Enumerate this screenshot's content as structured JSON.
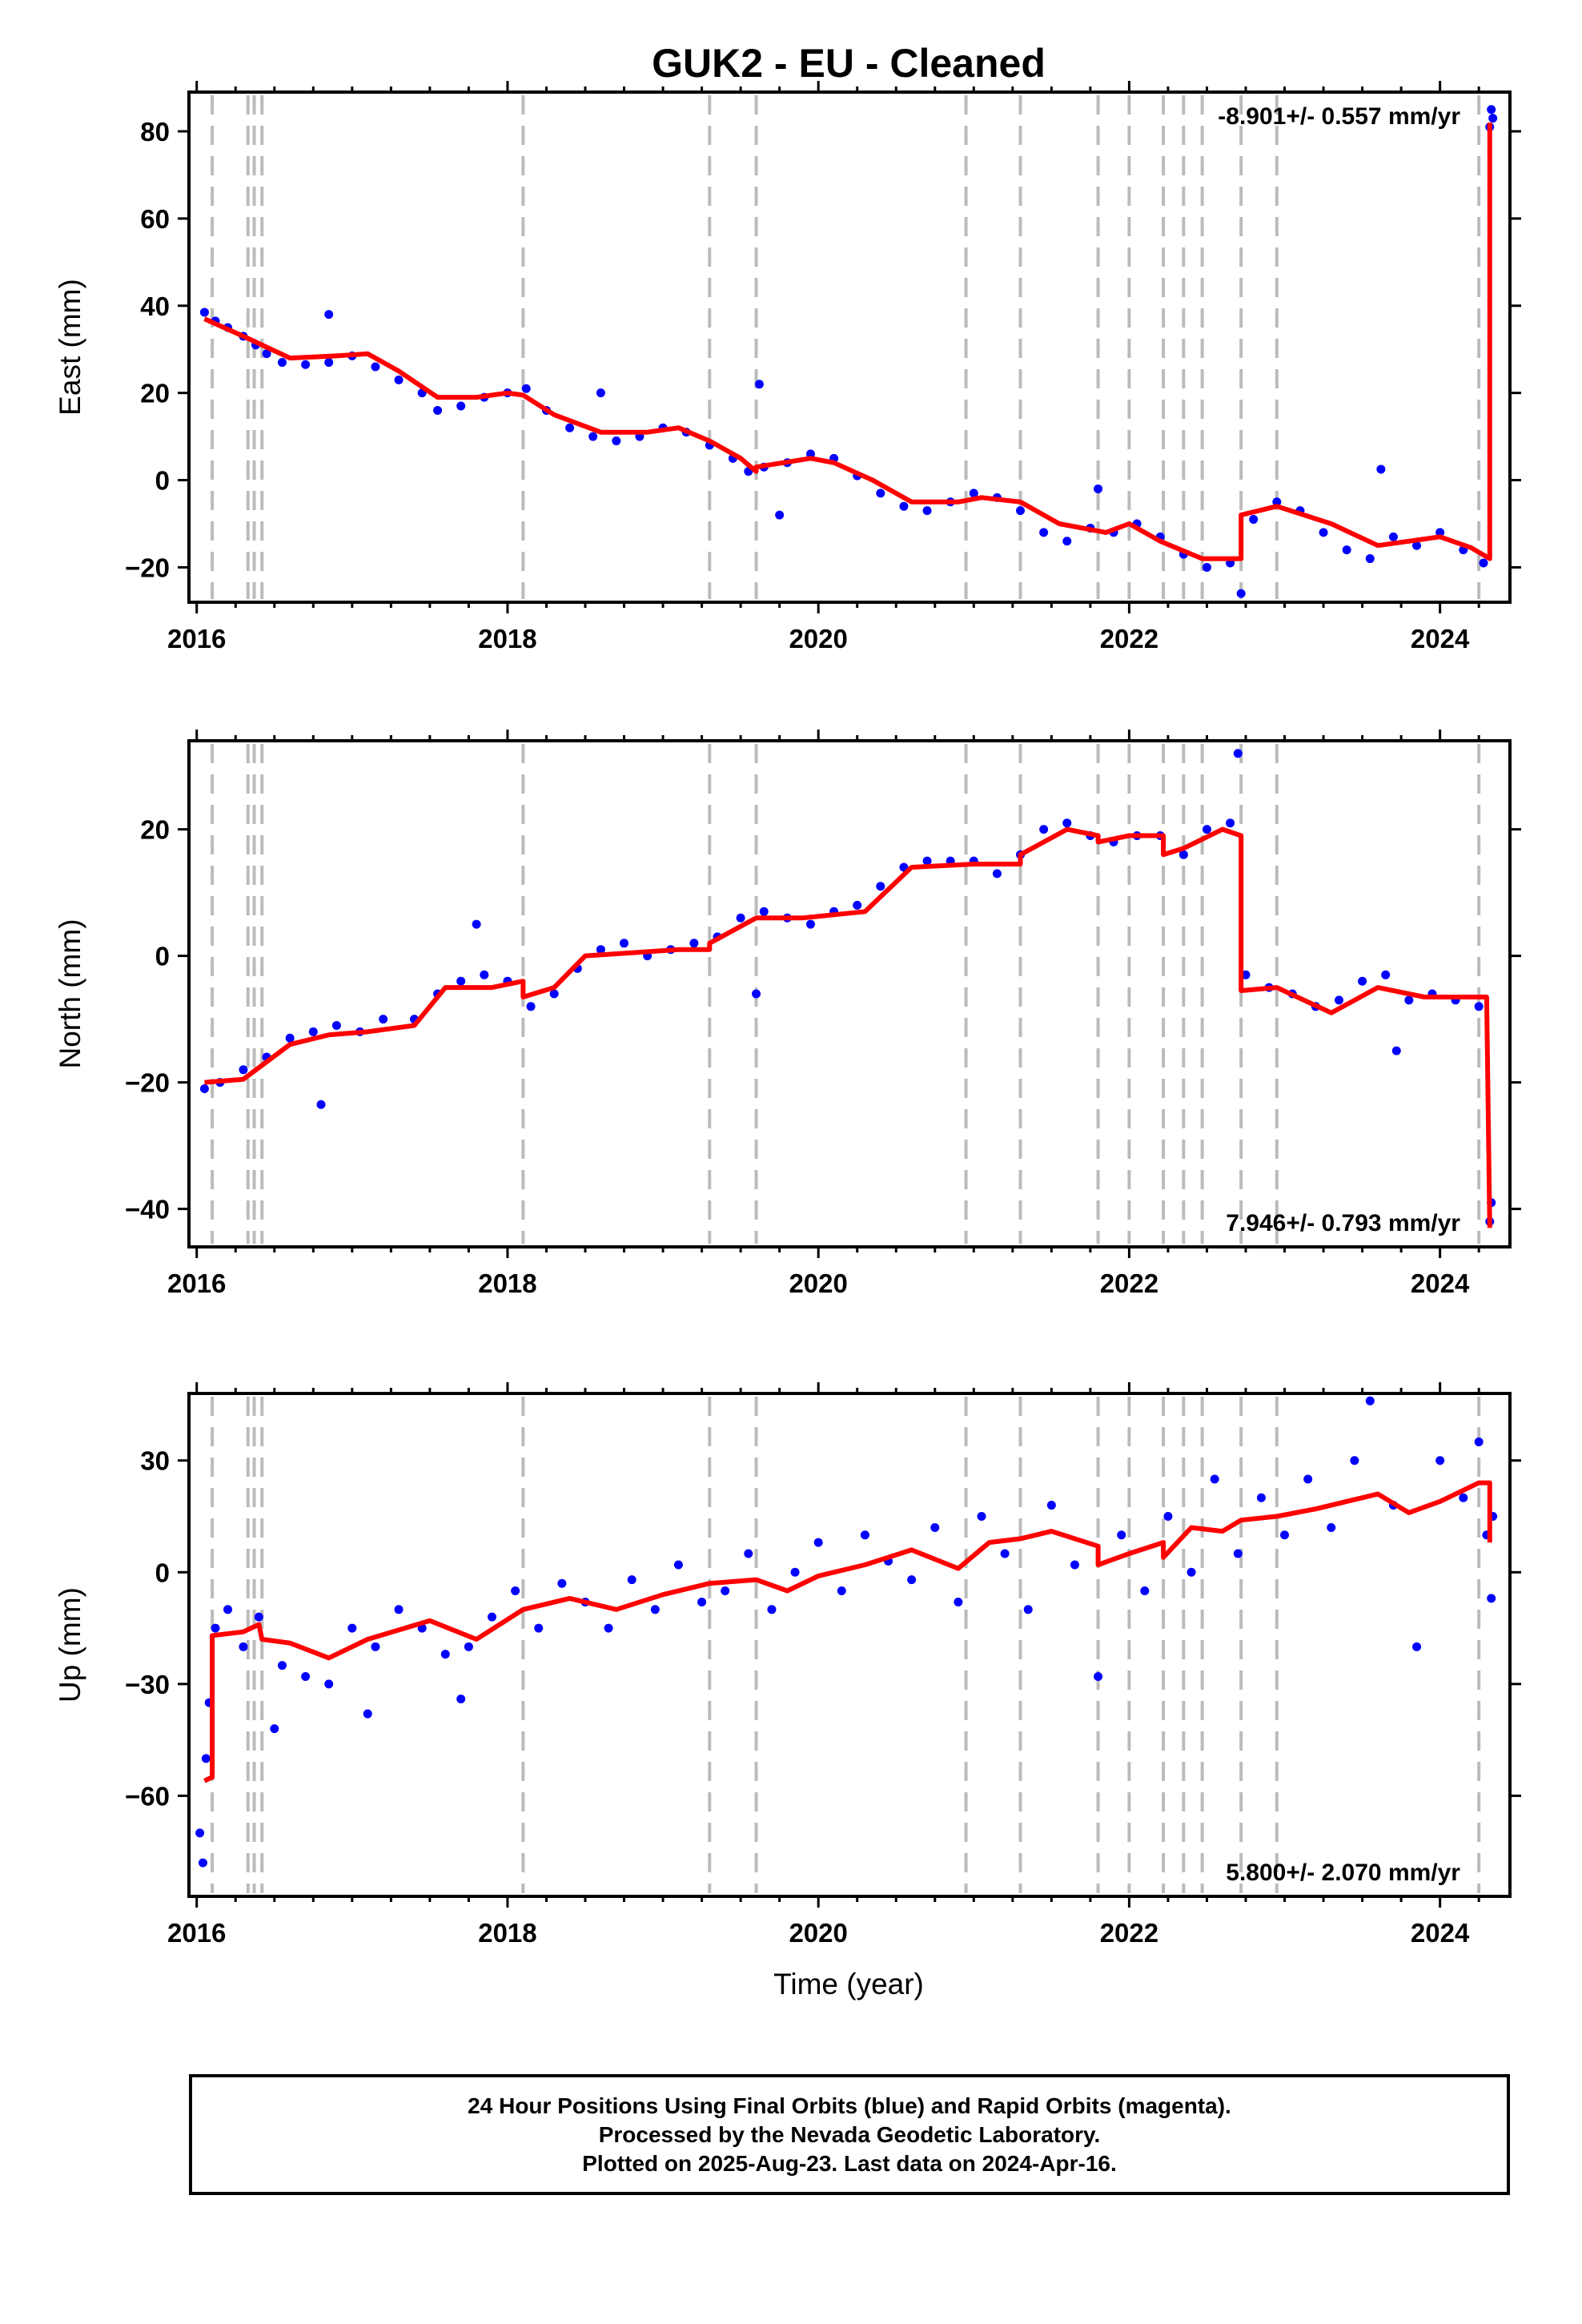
{
  "title": "GUK2  - EU - Cleaned",
  "footer": {
    "line1": "24 Hour Positions Using Final Orbits (blue) and Rapid Orbits (magenta).",
    "line2": "Processed by the Nevada Geodetic Laboratory.",
    "line3": "Plotted on 2025-Aug-23. Last data on 2024-Apr-16."
  },
  "colors": {
    "points": "#0000ff",
    "model": "#ff0000",
    "steps": "#bbbbbb"
  },
  "chart_data": [
    {
      "type": "scatter",
      "ylabel": "East (mm)",
      "xlabel": "",
      "rate_label": "-8.901+/- 0.557 mm/yr",
      "rate_position": "top-right",
      "xlim": [
        2015.95,
        2024.45
      ],
      "ylim": [
        -28,
        89
      ],
      "x_ticks": [
        2016,
        2018,
        2020,
        2022,
        2024
      ],
      "y_ticks": [
        -20,
        0,
        20,
        40,
        60,
        80
      ],
      "grid": false,
      "step_epochs": [
        2016.1,
        2016.33,
        2016.37,
        2016.42,
        2018.1,
        2019.3,
        2019.6,
        2020.95,
        2021.3,
        2021.8,
        2022.0,
        2022.22,
        2022.35,
        2022.47,
        2022.72,
        2022.95,
        2024.25
      ],
      "model": [
        [
          2016.05,
          37
        ],
        [
          2016.3,
          33
        ],
        [
          2016.6,
          28
        ],
        [
          2016.9,
          28.5
        ],
        [
          2017.1,
          29
        ],
        [
          2017.3,
          25
        ],
        [
          2017.55,
          19
        ],
        [
          2017.8,
          19
        ],
        [
          2018.0,
          20
        ],
        [
          2018.1,
          19.5
        ],
        [
          2018.3,
          15
        ],
        [
          2018.6,
          11
        ],
        [
          2018.9,
          11
        ],
        [
          2019.1,
          12
        ],
        [
          2019.3,
          9
        ],
        [
          2019.5,
          5
        ],
        [
          2019.6,
          2
        ],
        [
          2019.6,
          3
        ],
        [
          2019.95,
          5
        ],
        [
          2020.1,
          4
        ],
        [
          2020.35,
          0
        ],
        [
          2020.6,
          -5
        ],
        [
          2020.9,
          -5
        ],
        [
          2021.05,
          -4
        ],
        [
          2021.3,
          -5
        ],
        [
          2021.55,
          -10
        ],
        [
          2021.85,
          -12
        ],
        [
          2022.0,
          -10
        ],
        [
          2022.2,
          -14
        ],
        [
          2022.47,
          -18
        ],
        [
          2022.72,
          -18
        ],
        [
          2022.72,
          -8
        ],
        [
          2022.95,
          -6
        ],
        [
          2023.3,
          -10
        ],
        [
          2023.6,
          -15
        ],
        [
          2023.8,
          -14
        ],
        [
          2024.0,
          -13
        ],
        [
          2024.2,
          -15.5
        ],
        [
          2024.32,
          -18
        ],
        [
          2024.32,
          82
        ]
      ],
      "points": [
        [
          2016.05,
          38.5
        ],
        [
          2016.12,
          36.5
        ],
        [
          2016.2,
          35
        ],
        [
          2016.3,
          33
        ],
        [
          2016.38,
          31
        ],
        [
          2016.45,
          29
        ],
        [
          2016.55,
          27
        ],
        [
          2016.7,
          26.5
        ],
        [
          2016.85,
          27
        ],
        [
          2017.0,
          28.5
        ],
        [
          2017.15,
          26
        ],
        [
          2017.3,
          23
        ],
        [
          2017.45,
          20
        ],
        [
          2017.55,
          16
        ],
        [
          2017.7,
          17
        ],
        [
          2017.85,
          19
        ],
        [
          2018.0,
          20
        ],
        [
          2018.12,
          21
        ],
        [
          2018.25,
          16
        ],
        [
          2018.4,
          12
        ],
        [
          2018.55,
          10
        ],
        [
          2018.7,
          9
        ],
        [
          2018.85,
          10
        ],
        [
          2019.0,
          12
        ],
        [
          2019.15,
          11
        ],
        [
          2019.3,
          8
        ],
        [
          2019.45,
          5
        ],
        [
          2019.55,
          2
        ],
        [
          2019.65,
          3
        ],
        [
          2019.8,
          4
        ],
        [
          2019.95,
          6
        ],
        [
          2020.1,
          5
        ],
        [
          2020.25,
          1
        ],
        [
          2020.4,
          -3
        ],
        [
          2020.55,
          -6
        ],
        [
          2020.7,
          -7
        ],
        [
          2020.85,
          -5
        ],
        [
          2021.0,
          -3
        ],
        [
          2021.15,
          -4
        ],
        [
          2021.3,
          -7
        ],
        [
          2021.45,
          -12
        ],
        [
          2021.6,
          -14
        ],
        [
          2021.75,
          -11
        ],
        [
          2021.9,
          -12
        ],
        [
          2022.05,
          -10
        ],
        [
          2022.2,
          -13
        ],
        [
          2022.35,
          -17
        ],
        [
          2022.5,
          -20
        ],
        [
          2022.65,
          -19
        ],
        [
          2022.72,
          -26
        ],
        [
          2022.8,
          -9
        ],
        [
          2022.95,
          -5
        ],
        [
          2023.1,
          -7
        ],
        [
          2023.25,
          -12
        ],
        [
          2023.4,
          -16
        ],
        [
          2023.55,
          -18
        ],
        [
          2023.7,
          -13
        ],
        [
          2023.85,
          -15
        ],
        [
          2024.0,
          -12
        ],
        [
          2024.15,
          -16
        ],
        [
          2024.28,
          -19
        ],
        [
          2024.32,
          81
        ],
        [
          2024.33,
          85
        ],
        [
          2024.34,
          83
        ],
        [
          2018.6,
          20
        ],
        [
          2019.62,
          22
        ],
        [
          2019.75,
          -8
        ],
        [
          2021.8,
          -2
        ],
        [
          2023.62,
          2.5
        ],
        [
          2016.85,
          38
        ]
      ]
    },
    {
      "type": "scatter",
      "ylabel": "North (mm)",
      "xlabel": "",
      "rate_label": "7.946+/- 0.793 mm/yr",
      "rate_position": "bottom-right",
      "xlim": [
        2015.95,
        2024.45
      ],
      "ylim": [
        -46,
        34
      ],
      "x_ticks": [
        2016,
        2018,
        2020,
        2022,
        2024
      ],
      "y_ticks": [
        -40,
        -20,
        0,
        20
      ],
      "grid": false,
      "step_epochs": [
        2016.1,
        2016.33,
        2016.37,
        2016.42,
        2018.1,
        2019.3,
        2019.6,
        2020.95,
        2021.3,
        2021.8,
        2022.0,
        2022.22,
        2022.35,
        2022.47,
        2022.72,
        2022.95,
        2024.25
      ],
      "model": [
        [
          2016.05,
          -20
        ],
        [
          2016.3,
          -19.5
        ],
        [
          2016.6,
          -14
        ],
        [
          2016.85,
          -12.5
        ],
        [
          2017.1,
          -12
        ],
        [
          2017.4,
          -11
        ],
        [
          2017.6,
          -5
        ],
        [
          2017.9,
          -5
        ],
        [
          2018.1,
          -4
        ],
        [
          2018.1,
          -6.5
        ],
        [
          2018.3,
          -5
        ],
        [
          2018.5,
          0
        ],
        [
          2018.8,
          0.5
        ],
        [
          2019.1,
          1
        ],
        [
          2019.3,
          1
        ],
        [
          2019.3,
          2
        ],
        [
          2019.6,
          6
        ],
        [
          2019.9,
          6
        ],
        [
          2020.3,
          7
        ],
        [
          2020.6,
          14
        ],
        [
          2021.0,
          14.5
        ],
        [
          2021.3,
          14.5
        ],
        [
          2021.3,
          16
        ],
        [
          2021.6,
          20
        ],
        [
          2021.8,
          19
        ],
        [
          2021.8,
          18
        ],
        [
          2022.0,
          19
        ],
        [
          2022.22,
          19
        ],
        [
          2022.22,
          16
        ],
        [
          2022.35,
          17
        ],
        [
          2022.6,
          20
        ],
        [
          2022.72,
          19
        ],
        [
          2022.72,
          -5.5
        ],
        [
          2022.95,
          -5
        ],
        [
          2023.3,
          -9
        ],
        [
          2023.6,
          -5
        ],
        [
          2023.9,
          -6.5
        ],
        [
          2024.3,
          -6.5
        ],
        [
          2024.32,
          -43
        ]
      ],
      "points": [
        [
          2016.05,
          -21
        ],
        [
          2016.15,
          -20
        ],
        [
          2016.3,
          -18
        ],
        [
          2016.45,
          -16
        ],
        [
          2016.6,
          -13
        ],
        [
          2016.75,
          -12
        ],
        [
          2016.9,
          -11
        ],
        [
          2017.05,
          -12
        ],
        [
          2017.2,
          -10
        ],
        [
          2017.4,
          -10
        ],
        [
          2017.55,
          -6
        ],
        [
          2017.7,
          -4
        ],
        [
          2017.85,
          -3
        ],
        [
          2018.0,
          -4
        ],
        [
          2018.15,
          -8
        ],
        [
          2018.3,
          -6
        ],
        [
          2018.45,
          -2
        ],
        [
          2018.6,
          1
        ],
        [
          2018.75,
          2
        ],
        [
          2018.9,
          0
        ],
        [
          2019.05,
          1
        ],
        [
          2019.2,
          2
        ],
        [
          2019.35,
          3
        ],
        [
          2019.5,
          6
        ],
        [
          2019.65,
          7
        ],
        [
          2019.8,
          6
        ],
        [
          2019.95,
          5
        ],
        [
          2020.1,
          7
        ],
        [
          2020.25,
          8
        ],
        [
          2020.4,
          11
        ],
        [
          2020.55,
          14
        ],
        [
          2020.7,
          15
        ],
        [
          2020.85,
          15
        ],
        [
          2021.0,
          15
        ],
        [
          2021.15,
          13
        ],
        [
          2021.3,
          16
        ],
        [
          2021.45,
          20
        ],
        [
          2021.6,
          21
        ],
        [
          2021.75,
          19
        ],
        [
          2021.9,
          18
        ],
        [
          2022.05,
          19
        ],
        [
          2022.2,
          19
        ],
        [
          2022.35,
          16
        ],
        [
          2022.5,
          20
        ],
        [
          2022.65,
          21
        ],
        [
          2022.7,
          32
        ],
        [
          2022.75,
          -3
        ],
        [
          2022.9,
          -5
        ],
        [
          2023.05,
          -6
        ],
        [
          2023.2,
          -8
        ],
        [
          2023.35,
          -7
        ],
        [
          2023.5,
          -4
        ],
        [
          2023.65,
          -3
        ],
        [
          2023.8,
          -7
        ],
        [
          2023.95,
          -6
        ],
        [
          2024.1,
          -7
        ],
        [
          2024.25,
          -8
        ],
        [
          2024.32,
          -42
        ],
        [
          2024.33,
          -39
        ],
        [
          2016.8,
          -23.5
        ],
        [
          2017.8,
          5
        ],
        [
          2019.6,
          -6
        ],
        [
          2023.72,
          -15
        ]
      ]
    },
    {
      "type": "scatter",
      "ylabel": "Up (mm)",
      "xlabel": "Time (year)",
      "rate_label": "5.800+/- 2.070 mm/yr",
      "rate_position": "bottom-right",
      "xlim": [
        2015.95,
        2024.45
      ],
      "ylim": [
        -87,
        48
      ],
      "x_ticks": [
        2016,
        2018,
        2020,
        2022,
        2024
      ],
      "y_ticks": [
        -60,
        -30,
        0,
        30
      ],
      "grid": false,
      "step_epochs": [
        2016.1,
        2016.33,
        2016.37,
        2016.42,
        2018.1,
        2019.3,
        2019.6,
        2020.95,
        2021.3,
        2021.8,
        2022.0,
        2022.22,
        2022.35,
        2022.47,
        2022.72,
        2022.95,
        2024.25
      ],
      "model": [
        [
          2016.05,
          -56
        ],
        [
          2016.1,
          -55
        ],
        [
          2016.1,
          -17
        ],
        [
          2016.3,
          -16
        ],
        [
          2016.4,
          -14
        ],
        [
          2016.42,
          -18
        ],
        [
          2016.6,
          -19
        ],
        [
          2016.85,
          -23
        ],
        [
          2017.1,
          -18
        ],
        [
          2017.5,
          -13
        ],
        [
          2017.8,
          -18
        ],
        [
          2018.1,
          -10
        ],
        [
          2018.4,
          -7
        ],
        [
          2018.7,
          -10
        ],
        [
          2019.0,
          -6
        ],
        [
          2019.3,
          -3
        ],
        [
          2019.6,
          -2
        ],
        [
          2019.8,
          -5
        ],
        [
          2020.0,
          -1
        ],
        [
          2020.3,
          2
        ],
        [
          2020.6,
          6
        ],
        [
          2020.9,
          1
        ],
        [
          2021.1,
          8
        ],
        [
          2021.3,
          9
        ],
        [
          2021.5,
          11
        ],
        [
          2021.8,
          7
        ],
        [
          2021.8,
          2
        ],
        [
          2022.0,
          5
        ],
        [
          2022.22,
          8
        ],
        [
          2022.22,
          4
        ],
        [
          2022.4,
          12
        ],
        [
          2022.6,
          11
        ],
        [
          2022.72,
          14
        ],
        [
          2022.95,
          15
        ],
        [
          2023.2,
          17
        ],
        [
          2023.6,
          21
        ],
        [
          2023.8,
          16
        ],
        [
          2024.0,
          19
        ],
        [
          2024.25,
          24
        ],
        [
          2024.32,
          24
        ],
        [
          2024.32,
          8
        ]
      ],
      "points": [
        [
          2016.02,
          -70
        ],
        [
          2016.04,
          -78
        ],
        [
          2016.06,
          -50
        ],
        [
          2016.08,
          -35
        ],
        [
          2016.12,
          -15
        ],
        [
          2016.2,
          -10
        ],
        [
          2016.3,
          -20
        ],
        [
          2016.4,
          -12
        ],
        [
          2016.55,
          -25
        ],
        [
          2016.7,
          -28
        ],
        [
          2016.85,
          -30
        ],
        [
          2017.0,
          -15
        ],
        [
          2017.15,
          -20
        ],
        [
          2017.3,
          -10
        ],
        [
          2017.45,
          -15
        ],
        [
          2017.6,
          -22
        ],
        [
          2017.75,
          -20
        ],
        [
          2017.9,
          -12
        ],
        [
          2018.05,
          -5
        ],
        [
          2018.2,
          -15
        ],
        [
          2018.35,
          -3
        ],
        [
          2018.5,
          -8
        ],
        [
          2018.65,
          -15
        ],
        [
          2018.8,
          -2
        ],
        [
          2018.95,
          -10
        ],
        [
          2019.1,
          2
        ],
        [
          2019.25,
          -8
        ],
        [
          2019.4,
          -5
        ],
        [
          2019.55,
          5
        ],
        [
          2019.7,
          -10
        ],
        [
          2019.85,
          0
        ],
        [
          2020.0,
          8
        ],
        [
          2020.15,
          -5
        ],
        [
          2020.3,
          10
        ],
        [
          2020.45,
          3
        ],
        [
          2020.6,
          -2
        ],
        [
          2020.75,
          12
        ],
        [
          2020.9,
          -8
        ],
        [
          2021.05,
          15
        ],
        [
          2021.2,
          5
        ],
        [
          2021.35,
          -10
        ],
        [
          2021.5,
          18
        ],
        [
          2021.65,
          2
        ],
        [
          2021.8,
          -28
        ],
        [
          2021.95,
          10
        ],
        [
          2022.1,
          -5
        ],
        [
          2022.25,
          15
        ],
        [
          2022.4,
          0
        ],
        [
          2022.55,
          25
        ],
        [
          2022.7,
          5
        ],
        [
          2022.85,
          20
        ],
        [
          2023.0,
          10
        ],
        [
          2023.15,
          25
        ],
        [
          2023.3,
          12
        ],
        [
          2023.45,
          30
        ],
        [
          2023.55,
          46
        ],
        [
          2023.7,
          18
        ],
        [
          2023.85,
          -20
        ],
        [
          2024.0,
          30
        ],
        [
          2024.15,
          20
        ],
        [
          2024.25,
          35
        ],
        [
          2024.3,
          10
        ],
        [
          2024.33,
          -7
        ],
        [
          2024.34,
          15
        ],
        [
          2016.5,
          -42
        ],
        [
          2017.1,
          -38
        ],
        [
          2017.7,
          -34
        ]
      ]
    }
  ]
}
